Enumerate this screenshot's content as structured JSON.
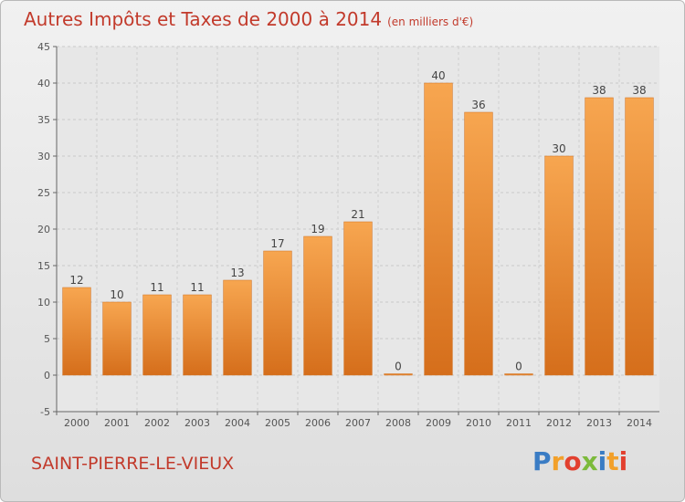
{
  "chart_data": {
    "type": "bar",
    "title": "Autres Impôts et Taxes de 2000 à 2014",
    "unit_label": "(en milliers d'€)",
    "categories": [
      "2000",
      "2001",
      "2002",
      "2003",
      "2004",
      "2005",
      "2006",
      "2007",
      "2008",
      "2009",
      "2010",
      "2011",
      "2012",
      "2013",
      "2014"
    ],
    "values": [
      12,
      10,
      11,
      11,
      13,
      17,
      19,
      21,
      0,
      40,
      36,
      0,
      30,
      38,
      38
    ],
    "ylim": [
      -5,
      45
    ],
    "yticks": [
      -5,
      0,
      5,
      10,
      15,
      20,
      25,
      30,
      35,
      40,
      45
    ],
    "grid": true,
    "bar_color": "#e8802a"
  },
  "footer": {
    "place": "SAINT-PIERRE-LE-VIEUX",
    "logo": "Proxiti"
  }
}
